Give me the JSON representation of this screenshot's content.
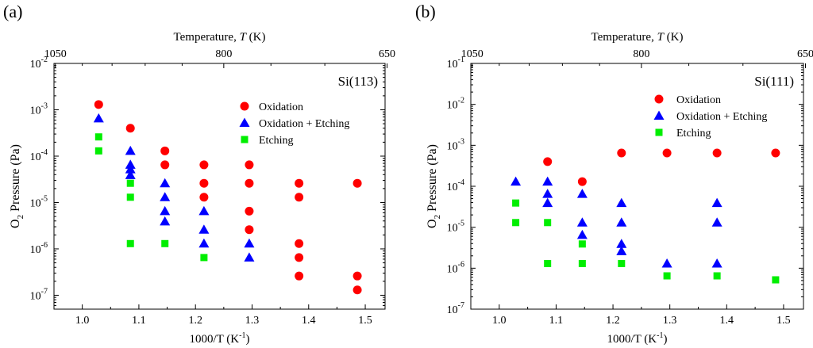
{
  "chart_data": [
    {
      "panel_label": "(a)",
      "type": "scatter",
      "yscale": "log",
      "annotation": "Si(113)",
      "xlabel": "1000/T (K",
      "xlabel_sup": "-1",
      "xlabel_end": ")",
      "ylabel": "O",
      "ylabel_sub": "2",
      "ylabel_end": " Pressure (Pa)",
      "top_label": "Temperature, ",
      "top_label_var": "T",
      "top_label_unit": " (K)",
      "xlim": [
        0.95,
        1.535
      ],
      "ylim_exp": [
        -7.3,
        -2
      ],
      "x_ticks": [
        1.0,
        1.1,
        1.2,
        1.3,
        1.4,
        1.5
      ],
      "x_tick_labels": [
        "1.0",
        "1.1",
        "1.2",
        "1.3",
        "1.4",
        "1.5"
      ],
      "y_tick_exps": [
        -7,
        -6,
        -5,
        -4,
        -3,
        -2
      ],
      "top_ticks": [
        {
          "label": "1050",
          "x": 0.9524
        },
        {
          "label": "800",
          "x": 1.25
        },
        {
          "label": "650",
          "x": 1.5385
        }
      ],
      "legend": [
        "Oxidation",
        "Oxidation + Etching",
        "Etching"
      ],
      "series": [
        {
          "name": "Oxidation",
          "marker": "circle",
          "color": "#ff0000",
          "points": [
            [
              1.029,
              0.0013
            ],
            [
              1.085,
              0.0004
            ],
            [
              1.146,
              0.00013
            ],
            [
              1.146,
              6.5e-05
            ],
            [
              1.215,
              6.5e-05
            ],
            [
              1.215,
              2.6e-05
            ],
            [
              1.215,
              1.3e-05
            ],
            [
              1.295,
              6.5e-05
            ],
            [
              1.295,
              2.6e-05
            ],
            [
              1.295,
              6.5e-06
            ],
            [
              1.295,
              2.6e-06
            ],
            [
              1.383,
              2.6e-05
            ],
            [
              1.383,
              1.3e-05
            ],
            [
              1.383,
              1.3e-06
            ],
            [
              1.383,
              6.5e-07
            ],
            [
              1.383,
              2.6e-07
            ],
            [
              1.486,
              2.6e-05
            ],
            [
              1.486,
              2.6e-07
            ],
            [
              1.486,
              1.3e-07
            ]
          ]
        },
        {
          "name": "Oxidation + Etching",
          "marker": "triangle",
          "color": "#0000ff",
          "points": [
            [
              1.029,
              0.00065
            ],
            [
              1.085,
              0.00013
            ],
            [
              1.085,
              6.5e-05
            ],
            [
              1.085,
              5.2e-05
            ],
            [
              1.085,
              3.9e-05
            ],
            [
              1.146,
              2.6e-05
            ],
            [
              1.146,
              1.3e-05
            ],
            [
              1.146,
              6.5e-06
            ],
            [
              1.146,
              3.9e-06
            ],
            [
              1.215,
              6.5e-06
            ],
            [
              1.215,
              2.6e-06
            ],
            [
              1.215,
              1.3e-06
            ],
            [
              1.295,
              1.3e-06
            ],
            [
              1.295,
              6.5e-07
            ]
          ]
        },
        {
          "name": "Etching",
          "marker": "square",
          "color": "#00ee00",
          "points": [
            [
              1.029,
              0.00026
            ],
            [
              1.029,
              0.00013
            ],
            [
              1.085,
              2.6e-05
            ],
            [
              1.085,
              1.3e-05
            ],
            [
              1.085,
              1.3e-06
            ],
            [
              1.146,
              1.3e-06
            ],
            [
              1.215,
              6.5e-07
            ]
          ]
        }
      ]
    },
    {
      "panel_label": "(b)",
      "type": "scatter",
      "yscale": "log",
      "annotation": "Si(111)",
      "xlabel": "1000/T (K",
      "xlabel_sup": "-1",
      "xlabel_end": ")",
      "ylabel": "O",
      "ylabel_sub": "2",
      "ylabel_end": " Pressure (Pa)",
      "top_label": "Temperature, ",
      "top_label_var": "T",
      "top_label_unit": " (K)",
      "xlim": [
        0.95,
        1.535
      ],
      "ylim_exp": [
        -7,
        -1
      ],
      "x_ticks": [
        1.0,
        1.1,
        1.2,
        1.3,
        1.4,
        1.5
      ],
      "x_tick_labels": [
        "1.0",
        "1.1",
        "1.2",
        "1.3",
        "1.4",
        "1.5"
      ],
      "y_tick_exps": [
        -7,
        -6,
        -5,
        -4,
        -3,
        -2,
        -1
      ],
      "top_ticks": [
        {
          "label": "1050",
          "x": 0.9524
        },
        {
          "label": "800",
          "x": 1.25
        },
        {
          "label": "650",
          "x": 1.5385
        }
      ],
      "legend": [
        "Oxidation",
        "Oxidation + Etching",
        "Etching"
      ],
      "series": [
        {
          "name": "Oxidation",
          "marker": "circle",
          "color": "#ff0000",
          "points": [
            [
              1.085,
              0.0004
            ],
            [
              1.146,
              0.00013
            ],
            [
              1.215,
              0.00065
            ],
            [
              1.295,
              0.00065
            ],
            [
              1.383,
              0.00065
            ],
            [
              1.486,
              0.00065
            ]
          ]
        },
        {
          "name": "Oxidation + Etching",
          "marker": "triangle",
          "color": "#0000ff",
          "points": [
            [
              1.029,
              0.00013
            ],
            [
              1.085,
              0.00013
            ],
            [
              1.085,
              6.5e-05
            ],
            [
              1.085,
              3.9e-05
            ],
            [
              1.146,
              6.5e-05
            ],
            [
              1.146,
              1.3e-05
            ],
            [
              1.146,
              6.5e-06
            ],
            [
              1.215,
              3.9e-05
            ],
            [
              1.215,
              1.3e-05
            ],
            [
              1.215,
              3.9e-06
            ],
            [
              1.215,
              2.6e-06
            ],
            [
              1.295,
              1.3e-06
            ],
            [
              1.383,
              3.9e-05
            ],
            [
              1.383,
              1.3e-05
            ],
            [
              1.383,
              1.3e-06
            ]
          ]
        },
        {
          "name": "Etching",
          "marker": "square",
          "color": "#00ee00",
          "points": [
            [
              1.029,
              3.9e-05
            ],
            [
              1.029,
              1.3e-05
            ],
            [
              1.085,
              1.3e-05
            ],
            [
              1.085,
              1.3e-06
            ],
            [
              1.146,
              3.9e-06
            ],
            [
              1.146,
              1.3e-06
            ],
            [
              1.215,
              1.3e-06
            ],
            [
              1.295,
              6.5e-07
            ],
            [
              1.383,
              6.5e-07
            ],
            [
              1.486,
              5.2e-07
            ]
          ]
        }
      ]
    }
  ]
}
